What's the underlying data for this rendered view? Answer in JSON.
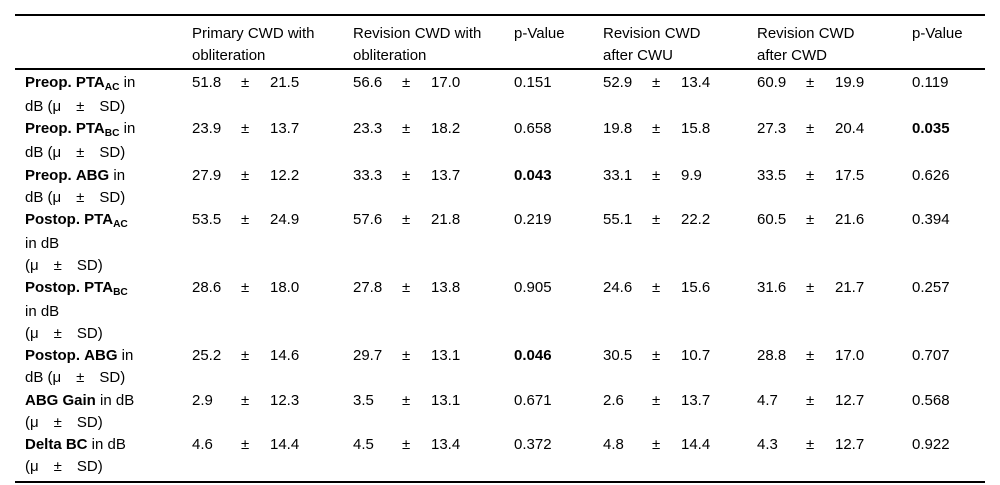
{
  "page": {
    "background": "#ffffff",
    "text_color": "#000000",
    "rule_color": "#000000"
  },
  "table": {
    "header": {
      "columns": [
        {
          "lines": []
        },
        {
          "lines": [
            "Primary CWD with",
            "obliteration"
          ]
        },
        {
          "lines": [
            "Revision CWD with",
            "obliteration"
          ]
        },
        {
          "lines": [
            "p-Value"
          ]
        },
        {
          "lines": [
            "Revision CWD",
            "after CWU"
          ]
        },
        {
          "lines": [
            "Revision CWD",
            "after CWD"
          ]
        },
        {
          "lines": [
            "p-Value"
          ]
        }
      ]
    },
    "rows": [
      {
        "label_lines": [
          [
            {
              "t": "Preop. PTA",
              "b": true
            },
            {
              "t": "AC",
              "b": true,
              "sub": true
            },
            {
              "t": " in",
              "b": false
            }
          ],
          [
            {
              "t": "dB (μ ± SD)",
              "b": false
            }
          ]
        ],
        "values": [
          {
            "mean": "51.8",
            "pm": "±",
            "sd": "21.5"
          },
          {
            "mean": "56.6",
            "pm": "±",
            "sd": "17.0"
          },
          {
            "p": "0.151",
            "bold": false
          },
          {
            "mean": "52.9",
            "pm": "±",
            "sd": "13.4"
          },
          {
            "mean": "60.9",
            "pm": "±",
            "sd": "19.9"
          },
          {
            "p": "0.119",
            "bold": false
          }
        ]
      },
      {
        "label_lines": [
          [
            {
              "t": "Preop. PTA",
              "b": true
            },
            {
              "t": "BC",
              "b": true,
              "sub": true
            },
            {
              "t": " in",
              "b": false
            }
          ],
          [
            {
              "t": "dB (μ ± SD)",
              "b": false
            }
          ]
        ],
        "values": [
          {
            "mean": "23.9",
            "pm": "±",
            "sd": "13.7"
          },
          {
            "mean": "23.3",
            "pm": "±",
            "sd": "18.2"
          },
          {
            "p": "0.658",
            "bold": false
          },
          {
            "mean": "19.8",
            "pm": "±",
            "sd": "15.8"
          },
          {
            "mean": "27.3",
            "pm": "±",
            "sd": "20.4"
          },
          {
            "p": "0.035",
            "bold": true
          }
        ]
      },
      {
        "label_lines": [
          [
            {
              "t": "Preop. ABG",
              "b": true
            },
            {
              "t": " in",
              "b": false
            }
          ],
          [
            {
              "t": "dB (μ ± SD)",
              "b": false
            }
          ]
        ],
        "values": [
          {
            "mean": "27.9",
            "pm": "±",
            "sd": "12.2"
          },
          {
            "mean": "33.3",
            "pm": "±",
            "sd": "13.7"
          },
          {
            "p": "0.043",
            "bold": true
          },
          {
            "mean": "33.1",
            "pm": "±",
            "sd": "9.9"
          },
          {
            "mean": "33.5",
            "pm": "±",
            "sd": "17.5"
          },
          {
            "p": "0.626",
            "bold": false
          }
        ]
      },
      {
        "label_lines": [
          [
            {
              "t": "Postop. PTA",
              "b": true
            },
            {
              "t": "AC",
              "b": true,
              "sub": true
            }
          ],
          [
            {
              "t": "in dB",
              "b": false
            }
          ],
          [
            {
              "t": "(μ ± SD)",
              "b": false
            }
          ]
        ],
        "values": [
          {
            "mean": "53.5",
            "pm": "±",
            "sd": "24.9"
          },
          {
            "mean": "57.6",
            "pm": "±",
            "sd": "21.8"
          },
          {
            "p": "0.219",
            "bold": false
          },
          {
            "mean": "55.1",
            "pm": "±",
            "sd": "22.2"
          },
          {
            "mean": "60.5",
            "pm": "±",
            "sd": "21.6"
          },
          {
            "p": "0.394",
            "bold": false
          }
        ]
      },
      {
        "label_lines": [
          [
            {
              "t": "Postop. PTA",
              "b": true
            },
            {
              "t": "BC",
              "b": true,
              "sub": true
            }
          ],
          [
            {
              "t": "in dB",
              "b": false
            }
          ],
          [
            {
              "t": "(μ ± SD)",
              "b": false
            }
          ]
        ],
        "values": [
          {
            "mean": "28.6",
            "pm": "±",
            "sd": "18.0"
          },
          {
            "mean": "27.8",
            "pm": "±",
            "sd": "13.8"
          },
          {
            "p": "0.905",
            "bold": false
          },
          {
            "mean": "24.6",
            "pm": "±",
            "sd": "15.6"
          },
          {
            "mean": "31.6",
            "pm": "±",
            "sd": "21.7"
          },
          {
            "p": "0.257",
            "bold": false
          }
        ]
      },
      {
        "label_lines": [
          [
            {
              "t": "Postop. ABG",
              "b": true
            },
            {
              "t": " in",
              "b": false
            }
          ],
          [
            {
              "t": "dB (μ ± SD)",
              "b": false
            }
          ]
        ],
        "values": [
          {
            "mean": "25.2",
            "pm": "±",
            "sd": "14.6"
          },
          {
            "mean": "29.7",
            "pm": "±",
            "sd": "13.1"
          },
          {
            "p": "0.046",
            "bold": true
          },
          {
            "mean": "30.5",
            "pm": "±",
            "sd": "10.7"
          },
          {
            "mean": "28.8",
            "pm": "±",
            "sd": "17.0"
          },
          {
            "p": "0.707",
            "bold": false
          }
        ]
      },
      {
        "label_lines": [
          [
            {
              "t": "ABG Gain",
              "b": true
            },
            {
              "t": " in dB",
              "b": false
            }
          ],
          [
            {
              "t": "(μ ± SD)",
              "b": false
            }
          ]
        ],
        "values": [
          {
            "mean": "2.9",
            "pm": "±",
            "sd": "12.3"
          },
          {
            "mean": "3.5",
            "pm": "±",
            "sd": "13.1"
          },
          {
            "p": "0.671",
            "bold": false
          },
          {
            "mean": "2.6",
            "pm": "±",
            "sd": "13.7"
          },
          {
            "mean": "4.7",
            "pm": "±",
            "sd": "12.7"
          },
          {
            "p": "0.568",
            "bold": false
          }
        ]
      },
      {
        "label_lines": [
          [
            {
              "t": "Delta BC",
              "b": true
            },
            {
              "t": " in dB",
              "b": false
            }
          ],
          [
            {
              "t": "(μ ± SD)",
              "b": false
            }
          ]
        ],
        "values": [
          {
            "mean": "4.6",
            "pm": "±",
            "sd": "14.4"
          },
          {
            "mean": "4.5",
            "pm": "±",
            "sd": "13.4"
          },
          {
            "p": "0.372",
            "bold": false
          },
          {
            "mean": "4.8",
            "pm": "±",
            "sd": "14.4"
          },
          {
            "mean": "4.3",
            "pm": "±",
            "sd": "12.7"
          },
          {
            "p": "0.922",
            "bold": false
          }
        ]
      }
    ]
  }
}
